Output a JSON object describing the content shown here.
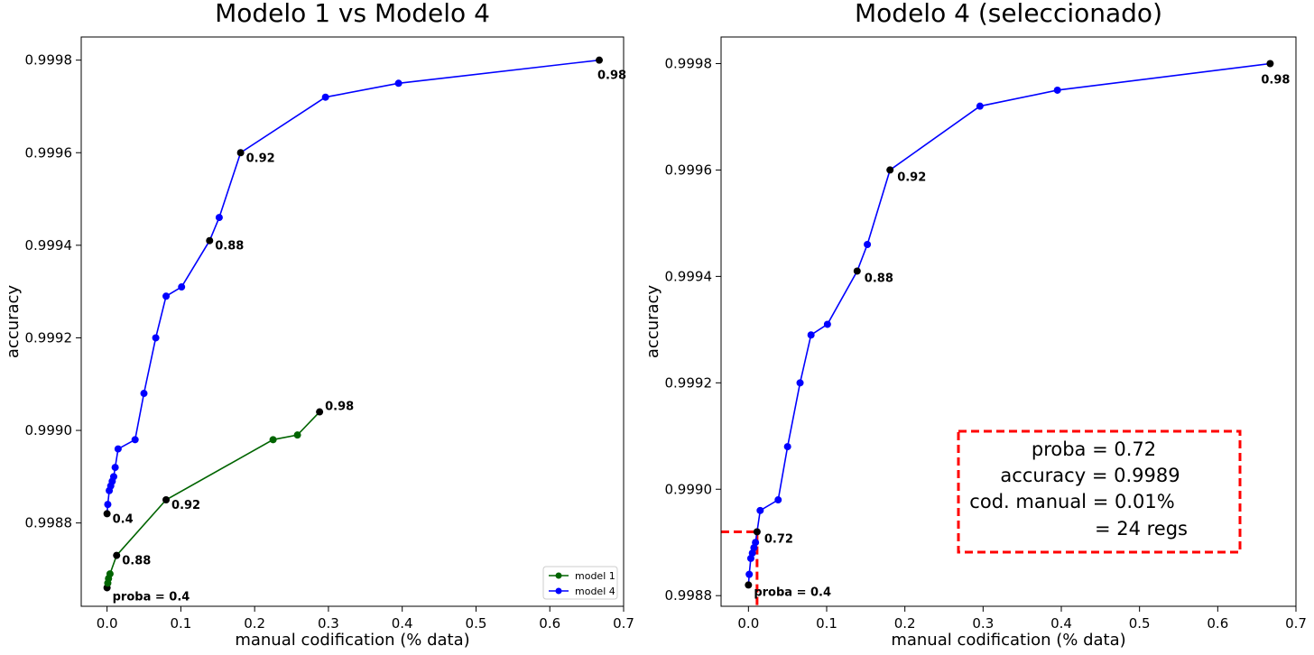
{
  "chart_data": [
    {
      "type": "line",
      "title": "Modelo 1 vs Modelo 4",
      "xlabel": "manual codification (% data)",
      "ylabel": "accuracy",
      "xlim": [
        -0.035,
        0.7
      ],
      "ylim": [
        0.99862,
        0.99985
      ],
      "xticks": [
        0.0,
        0.1,
        0.2,
        0.3,
        0.4,
        0.5,
        0.6,
        0.7
      ],
      "xtick_labels": [
        "0.0",
        "0.1",
        "0.2",
        "0.3",
        "0.4",
        "0.5",
        "0.6",
        "0.7"
      ],
      "yticks": [
        0.9988,
        0.999,
        0.9992,
        0.9994,
        0.9996,
        0.9998
      ],
      "ytick_labels": [
        "0.9988",
        "0.9990",
        "0.9992",
        "0.9994",
        "0.9996",
        "0.9998"
      ],
      "grid": false,
      "legend_position": "lower-right",
      "series": [
        {
          "name": "model 1",
          "color": "#006400",
          "x": [
            0.0,
            0.001,
            0.002,
            0.004,
            0.013,
            0.08,
            0.225,
            0.258,
            0.288
          ],
          "y": [
            0.99866,
            0.99867,
            0.99868,
            0.99869,
            0.99873,
            0.99885,
            0.99898,
            0.99899,
            0.99904
          ]
        },
        {
          "name": "model 4",
          "color": "#0000ff",
          "x": [
            0.0,
            0.001,
            0.003,
            0.005,
            0.007,
            0.009,
            0.011,
            0.015,
            0.038,
            0.05,
            0.066,
            0.08,
            0.101,
            0.139,
            0.152,
            0.181,
            0.296,
            0.395,
            0.667
          ],
          "y": [
            0.99882,
            0.99884,
            0.99887,
            0.99888,
            0.99889,
            0.9989,
            0.99892,
            0.99896,
            0.99898,
            0.99908,
            0.9992,
            0.99929,
            0.99931,
            0.99941,
            0.99946,
            0.9996,
            0.99972,
            0.99975,
            0.9998
          ]
        }
      ],
      "annotations": [
        {
          "text": "proba = 0.4",
          "x": 0.0,
          "y": 0.99866,
          "series": "model 1"
        },
        {
          "text": "0.88",
          "x": 0.013,
          "y": 0.99873,
          "series": "model 1"
        },
        {
          "text": "0.92",
          "x": 0.08,
          "y": 0.99885,
          "series": "model 1"
        },
        {
          "text": "0.98",
          "x": 0.288,
          "y": 0.99904,
          "series": "model 1"
        },
        {
          "text": "0.4",
          "x": 0.0,
          "y": 0.99882,
          "series": "model 4"
        },
        {
          "text": "0.88",
          "x": 0.139,
          "y": 0.99941,
          "series": "model 4"
        },
        {
          "text": "0.92",
          "x": 0.181,
          "y": 0.9996,
          "series": "model 4"
        },
        {
          "text": "0.98",
          "x": 0.667,
          "y": 0.9998,
          "series": "model 4"
        }
      ]
    },
    {
      "type": "line",
      "title": "Modelo 4 (seleccionado)",
      "xlabel": "manual codification (% data)",
      "ylabel": "accuracy",
      "xlim": [
        -0.035,
        0.7
      ],
      "ylim": [
        0.99878,
        0.99985
      ],
      "xticks": [
        0.0,
        0.1,
        0.2,
        0.3,
        0.4,
        0.5,
        0.6,
        0.7
      ],
      "xtick_labels": [
        "0.0",
        "0.1",
        "0.2",
        "0.3",
        "0.4",
        "0.5",
        "0.6",
        "0.7"
      ],
      "yticks": [
        0.9988,
        0.999,
        0.9992,
        0.9994,
        0.9996,
        0.9998
      ],
      "ytick_labels": [
        "0.9988",
        "0.9990",
        "0.9992",
        "0.9994",
        "0.9996",
        "0.9998"
      ],
      "grid": false,
      "series": [
        {
          "name": "",
          "color": "#0000ff",
          "x": [
            0.0,
            0.001,
            0.003,
            0.005,
            0.007,
            0.009,
            0.011,
            0.015,
            0.038,
            0.05,
            0.066,
            0.08,
            0.101,
            0.139,
            0.152,
            0.181,
            0.296,
            0.395,
            0.667
          ],
          "y": [
            0.99882,
            0.99884,
            0.99887,
            0.99888,
            0.99889,
            0.9989,
            0.99892,
            0.99896,
            0.99898,
            0.99908,
            0.9992,
            0.99929,
            0.99931,
            0.99941,
            0.99946,
            0.9996,
            0.99972,
            0.99975,
            0.9998
          ]
        }
      ],
      "annotations": [
        {
          "text": "proba = 0.4",
          "x": 0.0,
          "y": 0.99882
        },
        {
          "text": "0.72",
          "x": 0.011,
          "y": 0.99892
        },
        {
          "text": "0.88",
          "x": 0.139,
          "y": 0.99941
        },
        {
          "text": "0.92",
          "x": 0.181,
          "y": 0.9996
        },
        {
          "text": "0.98",
          "x": 0.667,
          "y": 0.9998
        }
      ],
      "highlight": {
        "x": 0.011,
        "y": 0.99892,
        "color": "#ff0000"
      },
      "info_box": {
        "lines": [
          "proba = 0.72",
          "accuracy = 0.9989",
          "cod. manual = 0.01%",
          "= 24 regs"
        ],
        "border_color": "#ff0000"
      }
    }
  ]
}
